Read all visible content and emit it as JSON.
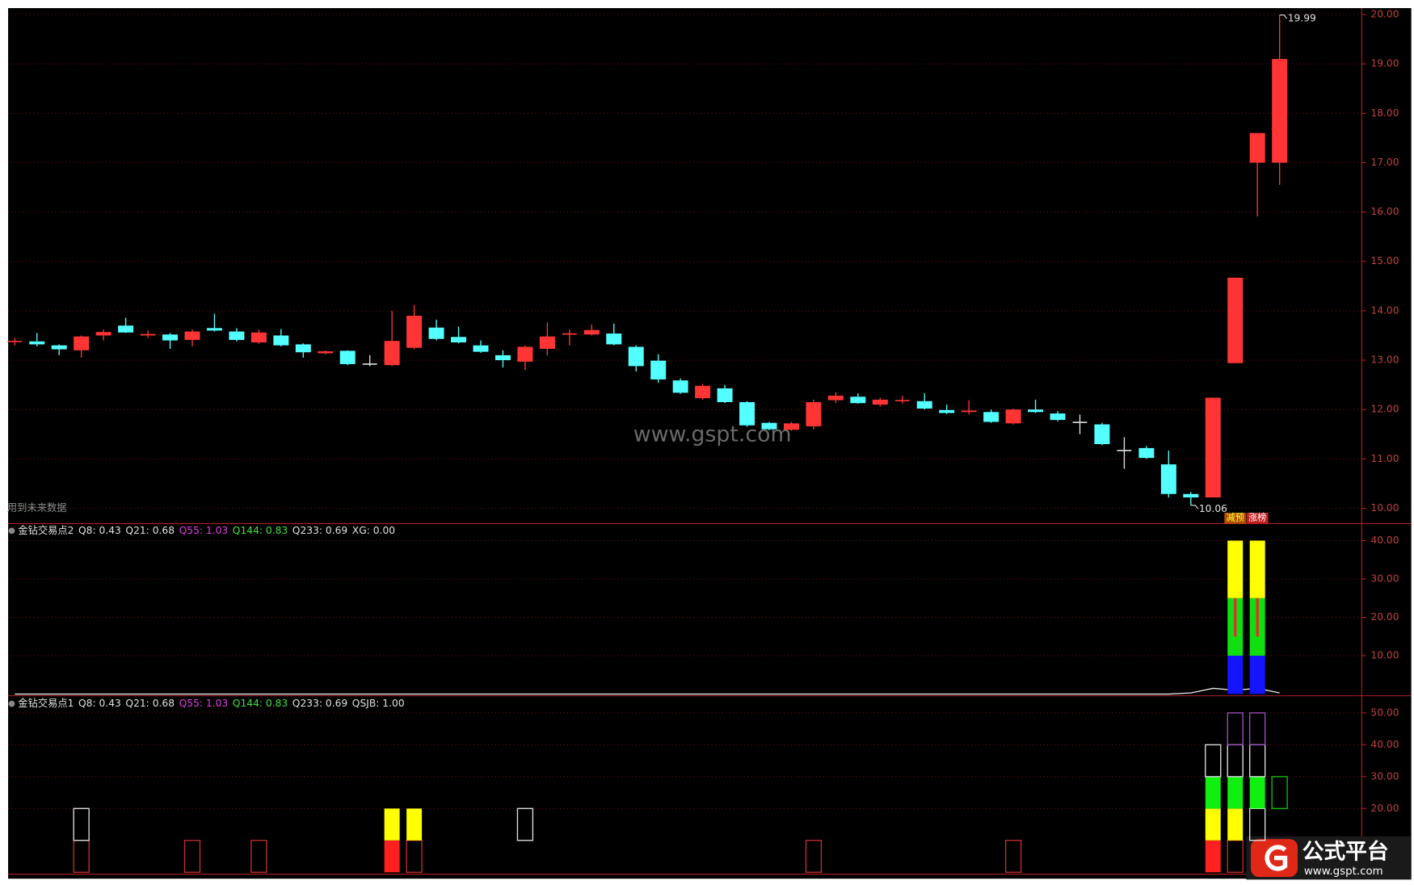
{
  "chart_data": [
    {
      "type": "candlestick",
      "note": "用到未来数据",
      "xlim": [
        -0.3,
        60.7
      ],
      "ylim": [
        9.69,
        20.13
      ],
      "yticks": [
        {
          "value": 10,
          "label": "10.00"
        },
        {
          "value": 11,
          "label": "11.00"
        },
        {
          "value": 12,
          "label": "12.00"
        },
        {
          "value": 13,
          "label": "13.00"
        },
        {
          "value": 14,
          "label": "14.00"
        },
        {
          "value": 15,
          "label": "15.00"
        },
        {
          "value": 16,
          "label": "16.00"
        },
        {
          "value": 17,
          "label": "17.00"
        },
        {
          "value": 18,
          "label": "18.00"
        },
        {
          "value": 19,
          "label": "19.00"
        },
        {
          "value": 20,
          "label": "20.00"
        }
      ],
      "grid": true,
      "up_color": "#ff3535",
      "down_color": "#54ffff",
      "flat_color": "#e0e0e0",
      "open": [
        13.38,
        13.38,
        13.3,
        13.2,
        13.5,
        13.7,
        13.5,
        13.52,
        13.41,
        13.65,
        13.58,
        13.36,
        13.5,
        13.32,
        13.14,
        13.19,
        12.92,
        12.9,
        13.25,
        13.66,
        13.47,
        13.3,
        13.1,
        12.97,
        13.23,
        13.53,
        13.52,
        13.54,
        13.27,
        12.99,
        12.59,
        12.23,
        12.43,
        12.15,
        11.73,
        11.59,
        11.66,
        12.19,
        12.26,
        12.1,
        12.18,
        12.17,
        11.99,
        11.95,
        11.95,
        11.72,
        12.0,
        11.92,
        11.74,
        11.7,
        11.17,
        11.22,
        10.89,
        10.29,
        10.22,
        12.94,
        17.0,
        17.0
      ],
      "high": [
        13.45,
        13.55,
        13.32,
        13.5,
        13.62,
        13.86,
        13.6,
        13.55,
        13.62,
        13.94,
        13.65,
        13.62,
        13.63,
        13.34,
        13.2,
        13.2,
        13.1,
        14.0,
        14.12,
        13.82,
        13.68,
        13.4,
        13.2,
        13.3,
        13.76,
        13.62,
        13.72,
        13.74,
        13.3,
        13.12,
        12.63,
        12.52,
        12.5,
        12.17,
        11.75,
        11.75,
        12.2,
        12.35,
        12.33,
        12.24,
        12.28,
        12.33,
        12.1,
        12.19,
        12.0,
        12.02,
        12.2,
        11.97,
        11.9,
        11.73,
        11.44,
        11.26,
        11.17,
        10.33,
        12.24,
        14.67,
        17.6,
        19.99
      ],
      "low": [
        13.3,
        13.28,
        13.1,
        13.05,
        13.4,
        13.55,
        13.45,
        13.23,
        13.28,
        13.58,
        13.38,
        13.33,
        13.28,
        13.05,
        13.12,
        12.9,
        12.88,
        12.88,
        13.22,
        13.4,
        13.34,
        13.15,
        12.85,
        12.8,
        13.1,
        13.3,
        13.5,
        13.3,
        12.77,
        12.54,
        12.32,
        12.2,
        12.13,
        11.65,
        11.58,
        11.57,
        11.6,
        12.13,
        12.12,
        12.06,
        12.12,
        12.0,
        11.91,
        11.9,
        11.73,
        11.7,
        11.93,
        11.76,
        11.5,
        11.28,
        10.8,
        11.0,
        10.22,
        10.06,
        10.22,
        12.94,
        15.91,
        16.55
      ],
      "close": [
        13.4,
        13.32,
        13.22,
        13.48,
        13.57,
        13.56,
        13.53,
        13.4,
        13.58,
        13.6,
        13.41,
        13.56,
        13.3,
        13.16,
        13.18,
        12.92,
        12.92,
        13.39,
        13.9,
        13.43,
        13.36,
        13.17,
        13.0,
        13.27,
        13.48,
        13.55,
        13.61,
        13.32,
        12.88,
        12.61,
        12.34,
        12.48,
        12.15,
        11.68,
        11.6,
        11.72,
        12.15,
        12.28,
        12.13,
        12.2,
        12.19,
        12.02,
        11.93,
        11.98,
        11.75,
        12.0,
        11.95,
        11.79,
        11.74,
        11.3,
        11.17,
        11.02,
        10.29,
        10.22,
        12.24,
        14.67,
        17.6,
        19.1
      ],
      "annotations": [
        {
          "label": "19.99",
          "x": 57,
          "value": 19.99
        },
        {
          "label": "10.06",
          "x": 53,
          "value": 10.06
        }
      ],
      "signals": [
        {
          "label": "减预",
          "x": 55,
          "color": "#ffff40",
          "bg": "#b05000"
        },
        {
          "label": "涨榜",
          "x": 56,
          "color": "#ffffff",
          "bg": "#c02020"
        }
      ]
    },
    {
      "type": "bar",
      "xlim": [
        -0.3,
        60.7
      ],
      "ylim": [
        -0.2,
        44.2
      ],
      "header": [
        {
          "text": "金钻交易点2",
          "color": "#e0e0e0"
        },
        {
          "text": "Q8: 0.43",
          "color": "#e0e0e0"
        },
        {
          "text": "Q21: 0.68",
          "color": "#e0e0e0"
        },
        {
          "text": "Q55: 1.03",
          "color": "#e040e0"
        },
        {
          "text": "Q144: 0.83",
          "color": "#40e040"
        },
        {
          "text": "Q233: 0.69",
          "color": "#e0e0e0"
        },
        {
          "text": "XG: 0.00",
          "color": "#e0e0e0"
        }
      ],
      "yticks": [
        {
          "value": 10,
          "label": "10.00"
        },
        {
          "value": 20,
          "label": "20.00"
        },
        {
          "value": 30,
          "label": "30.00"
        },
        {
          "value": 40,
          "label": "40.00"
        }
      ],
      "grid": true,
      "line": {
        "color": "#e8e8e8",
        "values": [
          0,
          0,
          0,
          0,
          0,
          0,
          0,
          0,
          0,
          0,
          0,
          0,
          0,
          0,
          0,
          0,
          0,
          0,
          0,
          0,
          0,
          0,
          0,
          0,
          0,
          0,
          0,
          0,
          0,
          0,
          0,
          0,
          0,
          0,
          0,
          0,
          0,
          0,
          0,
          0,
          0,
          0,
          0,
          0,
          0,
          0,
          0,
          0,
          0,
          0,
          0,
          0,
          0,
          0.3,
          1.5,
          1.0,
          1.5,
          0.3
        ]
      },
      "boxes": [
        {
          "x": 55,
          "low": 0,
          "high": 10,
          "color": "#1414ff",
          "fill": true
        },
        {
          "x": 55,
          "low": 10,
          "high": 25,
          "color": "#10e010",
          "fill": true
        },
        {
          "x": 55,
          "low": 25,
          "high": 40,
          "color": "#ffff00",
          "fill": true
        },
        {
          "x": 55,
          "low": 15,
          "high": 25,
          "color": "#e03030",
          "fill": true,
          "thin": true
        },
        {
          "x": 56,
          "low": 0,
          "high": 10,
          "color": "#1414ff",
          "fill": true
        },
        {
          "x": 56,
          "low": 10,
          "high": 25,
          "color": "#10e010",
          "fill": true
        },
        {
          "x": 56,
          "low": 25,
          "high": 40,
          "color": "#ffff00",
          "fill": true
        },
        {
          "x": 56,
          "low": 15,
          "high": 25,
          "color": "#e03030",
          "fill": true,
          "thin": true
        }
      ]
    },
    {
      "type": "bar",
      "xlim": [
        -0.3,
        60.7
      ],
      "ylim": [
        -0.6,
        55.1
      ],
      "header": [
        {
          "text": "金钻交易点1",
          "color": "#e0e0e0"
        },
        {
          "text": "Q8: 0.43",
          "color": "#e0e0e0"
        },
        {
          "text": "Q21: 0.68",
          "color": "#e0e0e0"
        },
        {
          "text": "Q55: 1.03",
          "color": "#e040e0"
        },
        {
          "text": "Q144: 0.83",
          "color": "#40e040"
        },
        {
          "text": "Q233: 0.69",
          "color": "#e0e0e0"
        },
        {
          "text": "QSJB: 1.00",
          "color": "#e0e0e0"
        }
      ],
      "yticks": [
        {
          "value": 20,
          "label": "20.00"
        },
        {
          "value": 30,
          "label": "30.00"
        },
        {
          "value": 40,
          "label": "40.00"
        },
        {
          "value": 50,
          "label": "50.00"
        }
      ],
      "grid": true,
      "boxes": [
        {
          "x": 3,
          "low": 0,
          "high": 10,
          "color": "#c03030",
          "fill": false
        },
        {
          "x": 3,
          "low": 10,
          "high": 20,
          "color": "#e0e0e0",
          "fill": false
        },
        {
          "x": 8,
          "low": 0,
          "high": 10,
          "color": "#c03030",
          "fill": false
        },
        {
          "x": 11,
          "low": 0,
          "high": 10,
          "color": "#c03030",
          "fill": false
        },
        {
          "x": 17,
          "low": 0,
          "high": 10,
          "color": "#ff2020",
          "fill": true
        },
        {
          "x": 17,
          "low": 10,
          "high": 20,
          "color": "#ffff00",
          "fill": true
        },
        {
          "x": 18,
          "low": 0,
          "high": 10,
          "color": "#c03030",
          "fill": false
        },
        {
          "x": 18,
          "low": 10,
          "high": 20,
          "color": "#ffff00",
          "fill": true
        },
        {
          "x": 23,
          "low": 10,
          "high": 20,
          "color": "#e0e0e0",
          "fill": false
        },
        {
          "x": 36,
          "low": 0,
          "high": 10,
          "color": "#c03030",
          "fill": false
        },
        {
          "x": 45,
          "low": 0,
          "high": 10,
          "color": "#c03030",
          "fill": false
        },
        {
          "x": 54,
          "low": 0,
          "high": 10,
          "color": "#ff2020",
          "fill": true
        },
        {
          "x": 54,
          "low": 10,
          "high": 20,
          "color": "#ffff00",
          "fill": true
        },
        {
          "x": 54,
          "low": 20,
          "high": 30,
          "color": "#10f010",
          "fill": true
        },
        {
          "x": 54,
          "low": 30,
          "high": 40,
          "color": "#e0e0e0",
          "fill": false
        },
        {
          "x": 55,
          "low": 0,
          "high": 10,
          "color": "#c03030",
          "fill": false
        },
        {
          "x": 55,
          "low": 10,
          "high": 20,
          "color": "#ffff00",
          "fill": true
        },
        {
          "x": 55,
          "low": 20,
          "high": 30,
          "color": "#10f010",
          "fill": true
        },
        {
          "x": 55,
          "low": 30,
          "high": 40,
          "color": "#e0e0e0",
          "fill": false
        },
        {
          "x": 55,
          "low": 40,
          "high": 50,
          "color": "#a050c0",
          "fill": false
        },
        {
          "x": 56,
          "low": 10,
          "high": 20,
          "color": "#e0e0e0",
          "fill": false
        },
        {
          "x": 56,
          "low": 20,
          "high": 30,
          "color": "#10f010",
          "fill": true
        },
        {
          "x": 56,
          "low": 30,
          "high": 40,
          "color": "#e0e0e0",
          "fill": false
        },
        {
          "x": 56,
          "low": 40,
          "high": 50,
          "color": "#a050c0",
          "fill": false
        },
        {
          "x": 57,
          "low": 20,
          "high": 30,
          "color": "#10c010",
          "fill": false
        }
      ]
    }
  ],
  "watermark": "www.gspt.com",
  "logo": {
    "title": "公式平台",
    "url": "www.gspt.com"
  }
}
